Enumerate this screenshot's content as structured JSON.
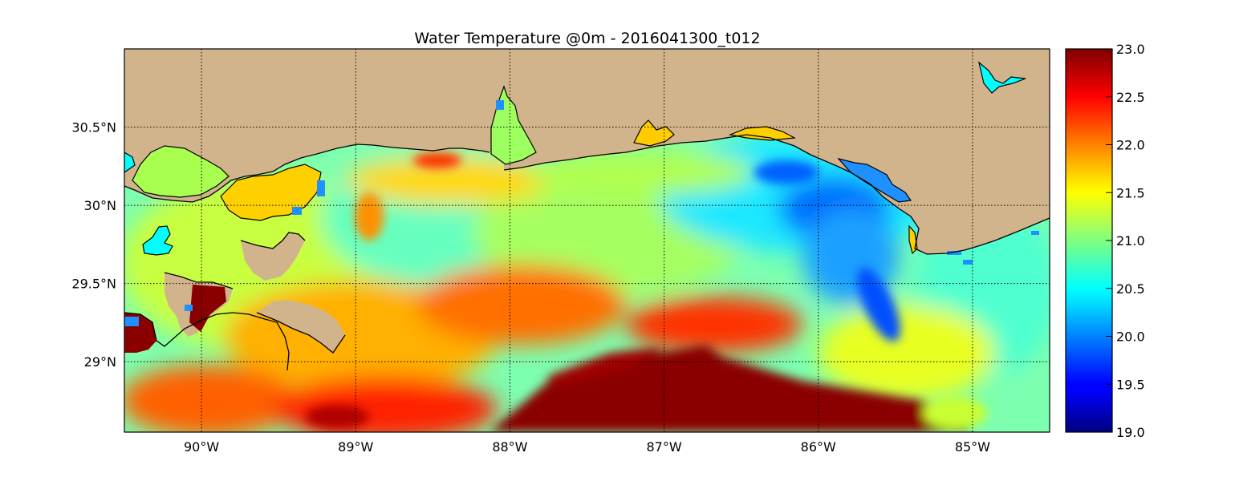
{
  "title": "Water Temperature @0m - 2016041300_t012",
  "map": {
    "lon_range": [
      -90.5,
      -84.5
    ],
    "lat_range": [
      28.55,
      31.0
    ],
    "grid": "dotted",
    "lon_ticks": [
      {
        "value": -90,
        "label": "90°W"
      },
      {
        "value": -89,
        "label": "89°W"
      },
      {
        "value": -88,
        "label": "88°W"
      },
      {
        "value": -87,
        "label": "87°W"
      },
      {
        "value": -86,
        "label": "86°W"
      },
      {
        "value": -85,
        "label": "85°W"
      }
    ],
    "lat_ticks": [
      {
        "value": 30.5,
        "label": "30.5°N"
      },
      {
        "value": 30.0,
        "label": "30°N"
      },
      {
        "value": 29.5,
        "label": "29.5°N"
      },
      {
        "value": 29.0,
        "label": "29°N"
      }
    ],
    "land_color": "#d2b48c",
    "lake_color": "#00ffff",
    "coast_color": "#000000"
  },
  "colorbar": {
    "range": [
      19.0,
      23.0
    ],
    "colormap": "jet",
    "placement": "right",
    "ticks": [
      {
        "value": 23.0,
        "label": "23.0"
      },
      {
        "value": 22.5,
        "label": "22.5"
      },
      {
        "value": 22.0,
        "label": "22.0"
      },
      {
        "value": 21.5,
        "label": "21.5"
      },
      {
        "value": 21.0,
        "label": "21.0"
      },
      {
        "value": 20.5,
        "label": "20.5"
      },
      {
        "value": 20.0,
        "label": "20.0"
      },
      {
        "value": 19.5,
        "label": "19.5"
      },
      {
        "value": 19.0,
        "label": "19.0"
      }
    ]
  },
  "features": {
    "warm_pool": {
      "lon": -86.4,
      "lat": 28.72,
      "temp": 23.0
    },
    "cold_patch": {
      "lon": -85.9,
      "lat": 30.05,
      "temp": 20.0
    },
    "inshore_band_temp": 21.5
  }
}
